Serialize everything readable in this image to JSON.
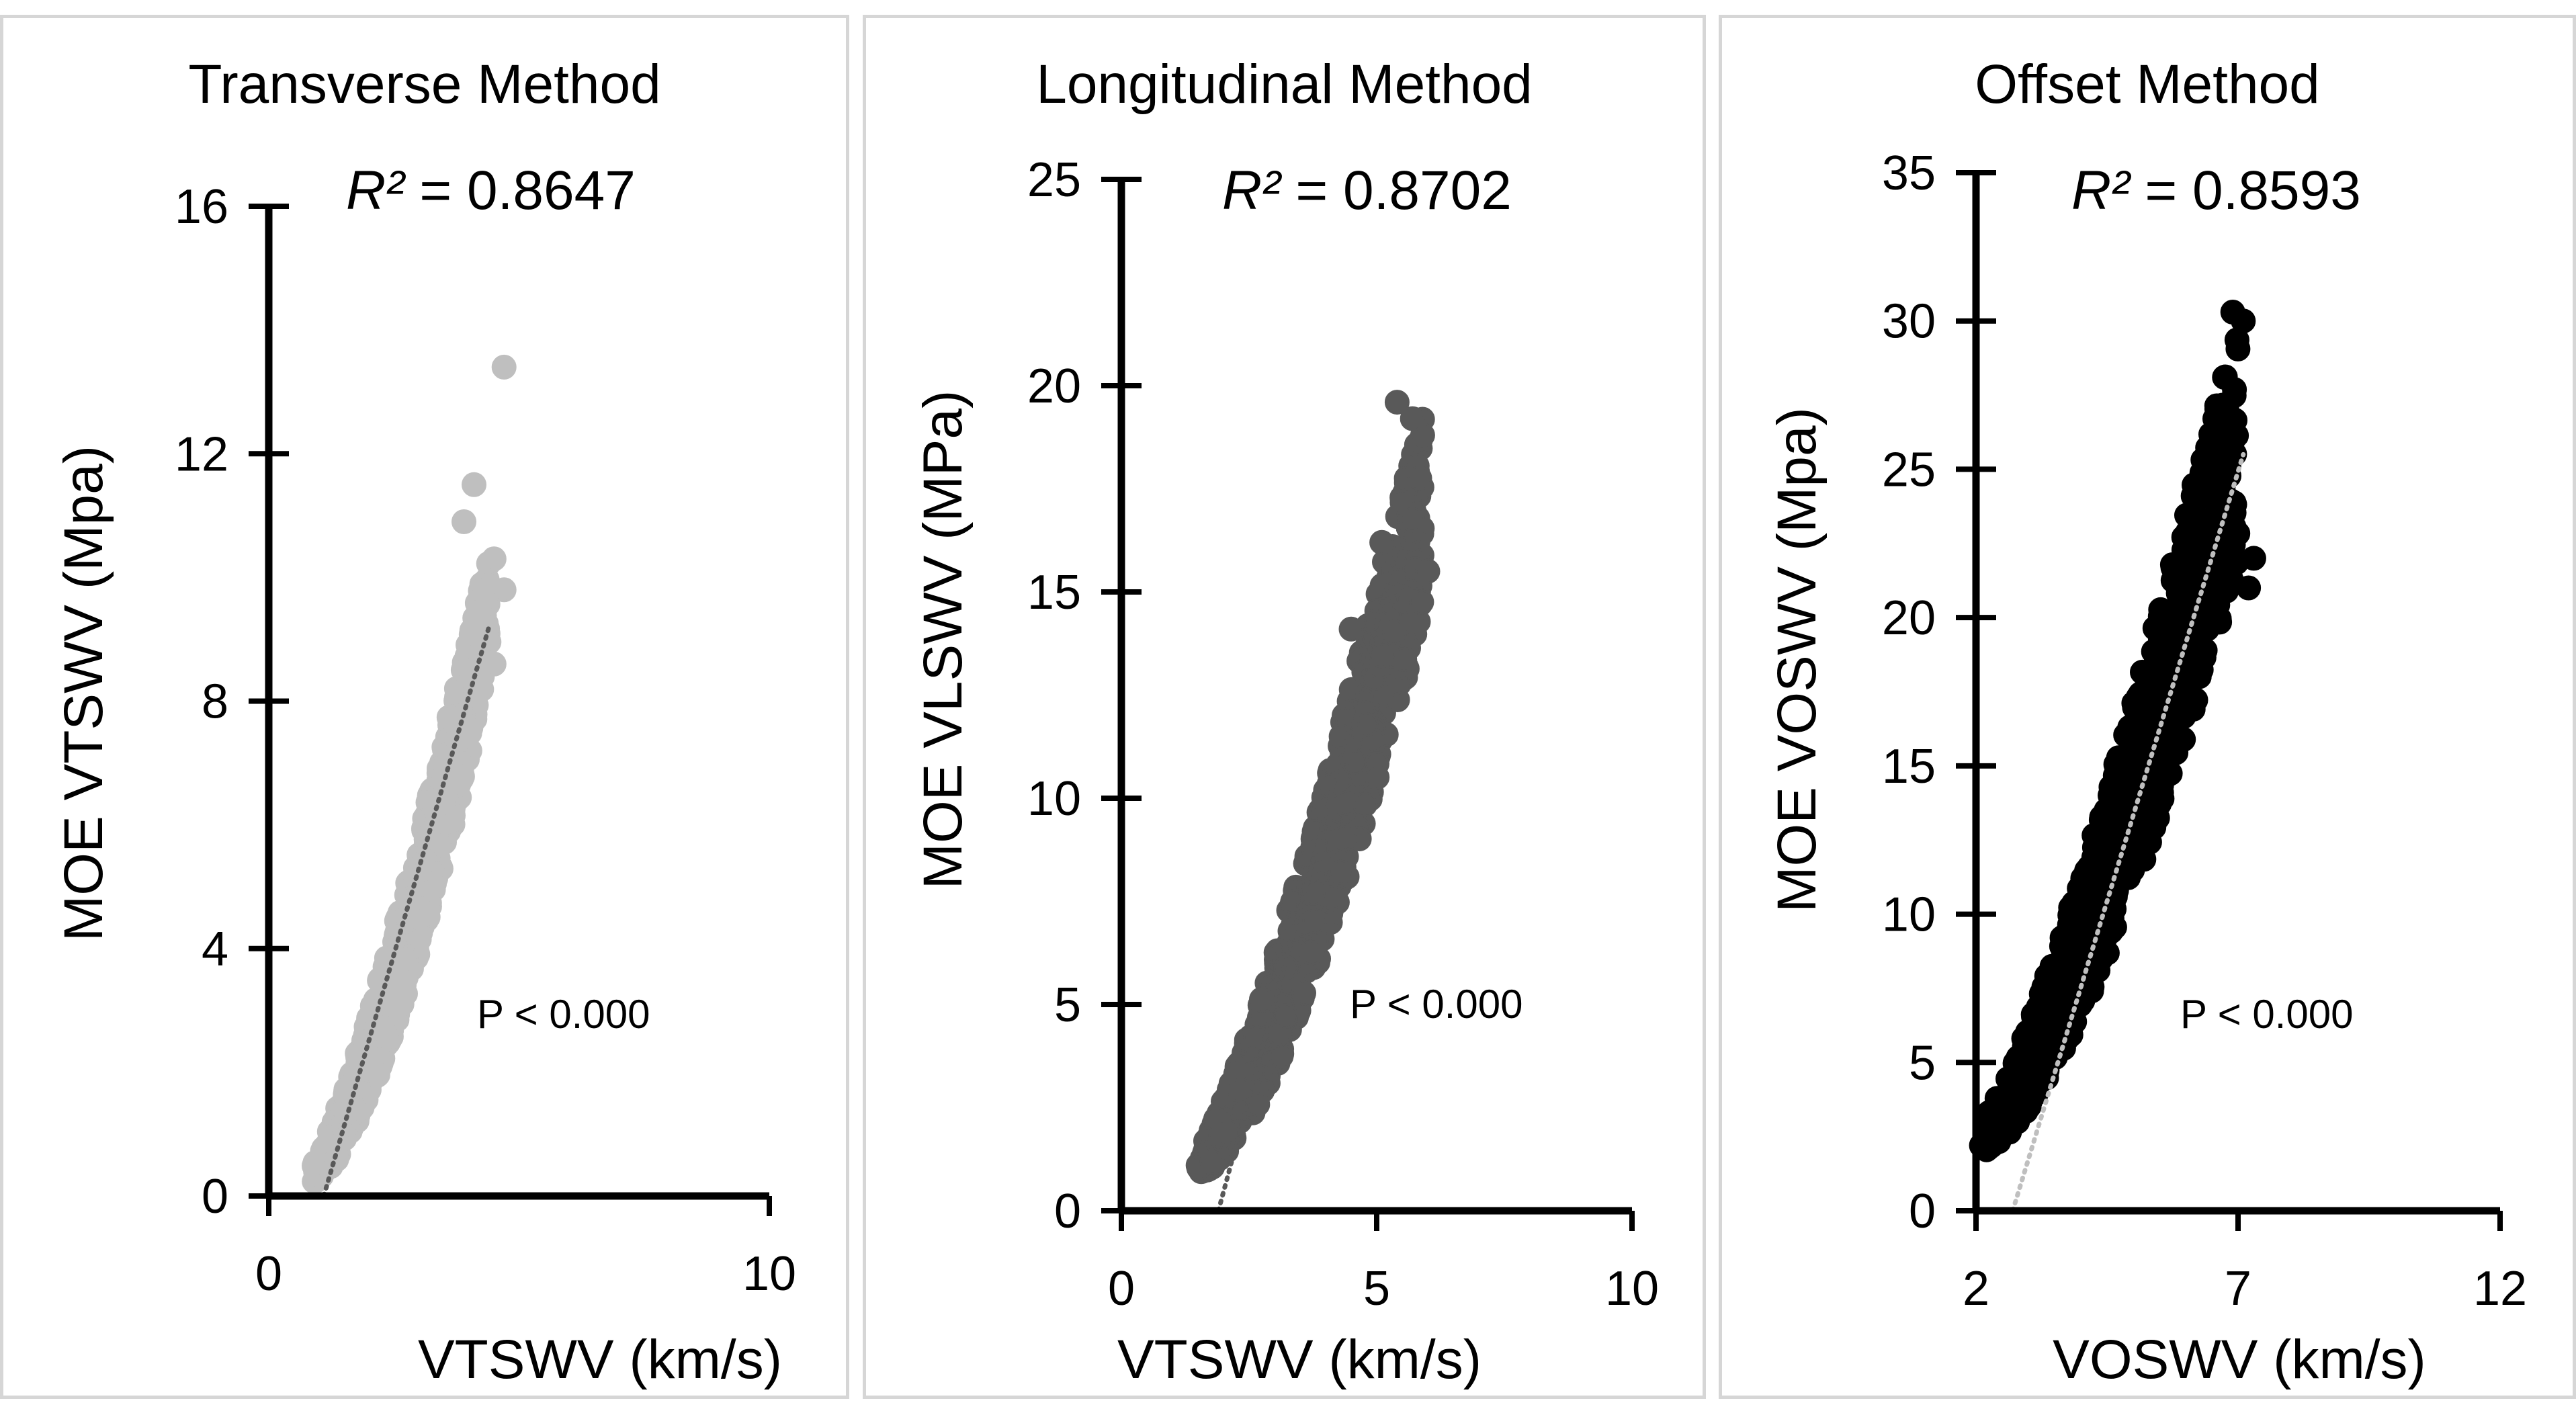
{
  "chart_data": [
    {
      "type": "scatter",
      "title": "Transverse Method",
      "r2_label": "R²",
      "r2_value": "= 0.8647",
      "p_value": "P < 0.000",
      "xlabel": "VTSWV (km/s)",
      "ylabel": "MOE VTSWV (Mpa)",
      "xlim": [
        0,
        10
      ],
      "ylim": [
        0,
        16
      ],
      "xticks": [
        0,
        10
      ],
      "yticks": [
        0,
        4,
        8,
        12,
        16
      ],
      "marker_color": "#bfbfbf",
      "trendline_color": "#595959",
      "trendline": [
        [
          1.1,
          0
        ],
        [
          4.4,
          9.2
        ]
      ],
      "band": {
        "x_start": 0.9,
        "x_end": 4.4,
        "y_low_start": 0.2,
        "y_high_start": 0.6,
        "y_low_end": 8.5,
        "y_high_end": 10.5
      },
      "outliers": [
        [
          4.7,
          13.4
        ],
        [
          4.1,
          11.5
        ],
        [
          3.9,
          10.9
        ],
        [
          4.5,
          10.3
        ],
        [
          4.7,
          9.8
        ],
        [
          4.5,
          8.6
        ]
      ],
      "series": [
        {
          "values": "scatter cloud"
        }
      ]
    },
    {
      "type": "scatter",
      "title": "Longitudinal Method",
      "r2_label": "R²",
      "r2_value": "= 0.8702",
      "p_value": "P < 0.000",
      "xlabel": "VTSWV (km/s)",
      "ylabel": "MOE VLSWV (MPa)",
      "xlim": [
        0,
        10
      ],
      "ylim": [
        0,
        25
      ],
      "xticks": [
        0,
        5,
        10
      ],
      "yticks": [
        0,
        5,
        10,
        15,
        20,
        25
      ],
      "marker_color": "#595959",
      "trendline_color": "#595959",
      "trendline": [
        [
          1.9,
          0
        ],
        [
          5.5,
          16.5
        ]
      ],
      "band": {
        "x_start": 1.5,
        "x_end": 5.9,
        "y_low_start": 0.8,
        "y_high_start": 1.5,
        "y_low_end": 14.5,
        "y_high_end": 19.5
      },
      "outliers": [
        [
          5.4,
          19.6
        ],
        [
          5.9,
          18.8
        ],
        [
          5.7,
          19.2
        ],
        [
          5.1,
          16.2
        ],
        [
          4.5,
          14.1
        ],
        [
          6.0,
          15.5
        ]
      ],
      "series": [
        {
          "values": "scatter cloud"
        }
      ]
    },
    {
      "type": "scatter",
      "title": "Offset Method",
      "r2_label": "R²",
      "r2_value": "= 0.8593",
      "p_value": "P < 0.000",
      "xlabel": "VOSWV (km/s)",
      "ylabel": "MOE VOSWV (Mpa)",
      "xlim": [
        2,
        12
      ],
      "ylim": [
        0,
        35
      ],
      "xticks": [
        2,
        7,
        12
      ],
      "yticks": [
        0,
        5,
        10,
        15,
        20,
        25,
        30,
        35
      ],
      "marker_color": "#000000",
      "trendline_color": "#bfbfbf",
      "trendline": [
        [
          2.7,
          0
        ],
        [
          7.1,
          25.5
        ]
      ],
      "band": {
        "x_start": 2.1,
        "x_end": 7.0,
        "y_low_start": 2.0,
        "y_high_start": 3.0,
        "y_low_end": 22.0,
        "y_high_end": 30.2
      },
      "outliers": [
        [
          6.9,
          30.3
        ],
        [
          7.1,
          30.0
        ],
        [
          3.3,
          4.8
        ],
        [
          7.2,
          21.0
        ],
        [
          7.3,
          22.0
        ],
        [
          2.3,
          2.2
        ]
      ],
      "series": [
        {
          "values": "scatter cloud"
        }
      ]
    }
  ]
}
